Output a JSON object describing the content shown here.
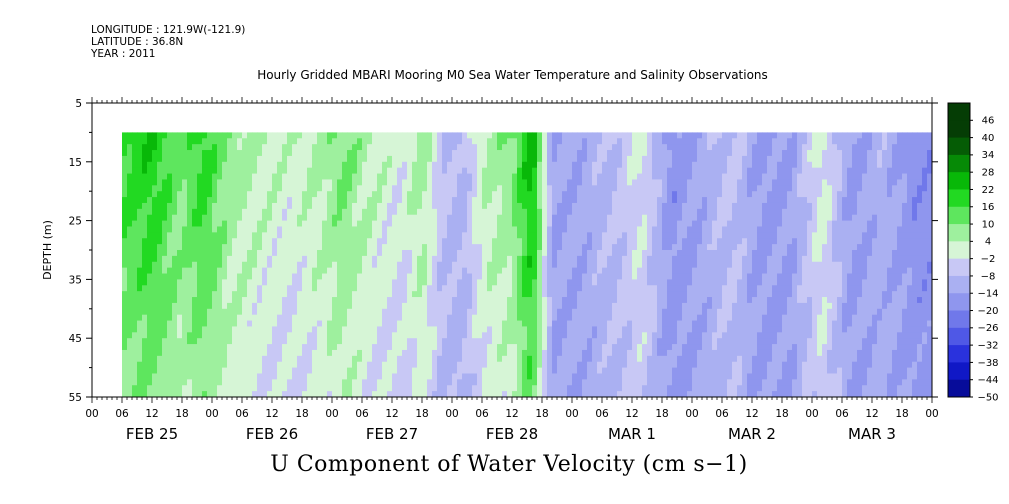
{
  "meta": {
    "longitude": "LONGITUDE : 121.9W(-121.9)",
    "latitude": "LATITUDE : 36.8N",
    "year": "YEAR : 2011"
  },
  "title": "Hourly Gridded MBARI Mooring M0 Sea Water Temperature and Salinity Observations",
  "bottom_label": "U Component of Water Velocity (cm s−1)",
  "colors": {
    "positive_ramp": [
      "#d6f5d6",
      "#9ef09e",
      "#5ee65e",
      "#22d922",
      "#08b808",
      "#068a06",
      "#055c05",
      "#053d05"
    ],
    "negative_ramp": [
      "#c8c8f5",
      "#aab0f2",
      "#8f96ee",
      "#7078ea",
      "#4f58e6",
      "#2a32dd",
      "#1018c6",
      "#070c9a",
      "#03066a"
    ]
  },
  "chart_data": {
    "type": "heatmap",
    "ylabel": "DEPTH (m)",
    "y_ticks": [
      "5",
      "15",
      "25",
      "35",
      "45",
      "55"
    ],
    "ylim": [
      55,
      5
    ],
    "x_hour_ticks": [
      "00",
      "06",
      "12",
      "18",
      "00",
      "06",
      "12",
      "18",
      "00",
      "06",
      "12",
      "18",
      "00",
      "06",
      "12",
      "18",
      "00",
      "06",
      "12",
      "18",
      "00",
      "06",
      "12",
      "18",
      "00",
      "06",
      "12",
      "18",
      "00"
    ],
    "x_day_labels": [
      "FEB 25",
      "FEB 26",
      "FEB 27",
      "FEB 28",
      "MAR  1",
      "MAR  2",
      "MAR  3"
    ],
    "xlim_hours": [
      0,
      168
    ],
    "data_depth_range": [
      10,
      55
    ],
    "data_start_hour": 6,
    "colorbar_levels": [
      "46",
      "40",
      "34",
      "28",
      "22",
      "16",
      "10",
      "4",
      "−2",
      "−8",
      "−14",
      "−20",
      "−26",
      "−32",
      "−38",
      "−44",
      "−50"
    ],
    "colorbar_range": [
      -50,
      50
    ],
    "columns_description_values_surface": [
      {
        "hour": 6,
        "u": 20
      },
      {
        "hour": 12,
        "u": 24
      },
      {
        "hour": 18,
        "u": 14
      },
      {
        "hour": 22,
        "u": 22
      },
      {
        "hour": 28,
        "u": 10
      },
      {
        "hour": 34,
        "u": 6
      },
      {
        "hour": 40,
        "u": 4
      },
      {
        "hour": 46,
        "u": 8
      },
      {
        "hour": 50,
        "u": 14
      },
      {
        "hour": 56,
        "u": 6
      },
      {
        "hour": 62,
        "u": 2
      },
      {
        "hour": 66,
        "u": 10
      },
      {
        "hour": 70,
        "u": -4
      },
      {
        "hour": 74,
        "u": -8
      },
      {
        "hour": 78,
        "u": 6
      },
      {
        "hour": 84,
        "u": 12
      },
      {
        "hour": 88,
        "u": 30
      },
      {
        "hour": 92,
        "u": -12
      },
      {
        "hour": 98,
        "u": -10
      },
      {
        "hour": 104,
        "u": -6
      },
      {
        "hour": 110,
        "u": 2
      },
      {
        "hour": 116,
        "u": -16
      },
      {
        "hour": 122,
        "u": -10
      },
      {
        "hour": 128,
        "u": -4
      },
      {
        "hour": 134,
        "u": -14
      },
      {
        "hour": 140,
        "u": -12
      },
      {
        "hour": 146,
        "u": 4
      },
      {
        "hour": 152,
        "u": -14
      },
      {
        "hour": 158,
        "u": -8
      },
      {
        "hour": 164,
        "u": -16
      }
    ]
  }
}
